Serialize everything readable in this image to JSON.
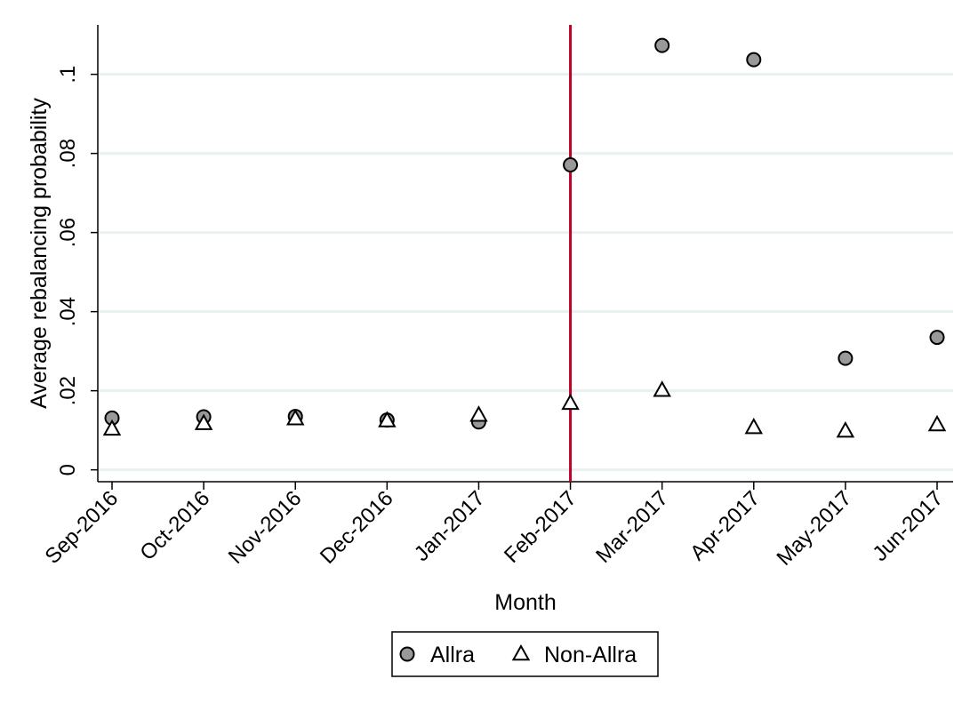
{
  "chart_data": {
    "type": "scatter",
    "title": "",
    "xlabel": "Month",
    "ylabel": "Average rebalancing probability",
    "categories": [
      "Sep-2016",
      "Oct-2016",
      "Nov-2016",
      "Dec-2016",
      "Jan-2017",
      "Feb-2017",
      "Mar-2017",
      "Apr-2017",
      "May-2017",
      "Jun-2017"
    ],
    "ylim": [
      -0.003,
      0.1125
    ],
    "yticks": [
      0,
      0.02,
      0.04,
      0.06,
      0.08,
      0.1
    ],
    "ytick_labels": [
      "0",
      ".02",
      ".04",
      ".06",
      ".08",
      ".1"
    ],
    "grid": true,
    "reference_line": {
      "category": "Feb-2017",
      "color": "#c1002a"
    },
    "legend_position": "bottom-center",
    "series": [
      {
        "name": "Allra",
        "marker": "circle",
        "color": "#999999",
        "values": [
          0.0131,
          0.0134,
          0.0135,
          0.0126,
          0.0121,
          0.0771,
          0.1073,
          0.1037,
          0.0282,
          0.0335
        ]
      },
      {
        "name": "Non-Allra",
        "marker": "triangle",
        "color": "#ffffff",
        "values": [
          0.0103,
          0.0117,
          0.0129,
          0.0124,
          0.0138,
          0.0168,
          0.0201,
          0.0107,
          0.0098,
          0.0114
        ]
      }
    ]
  }
}
